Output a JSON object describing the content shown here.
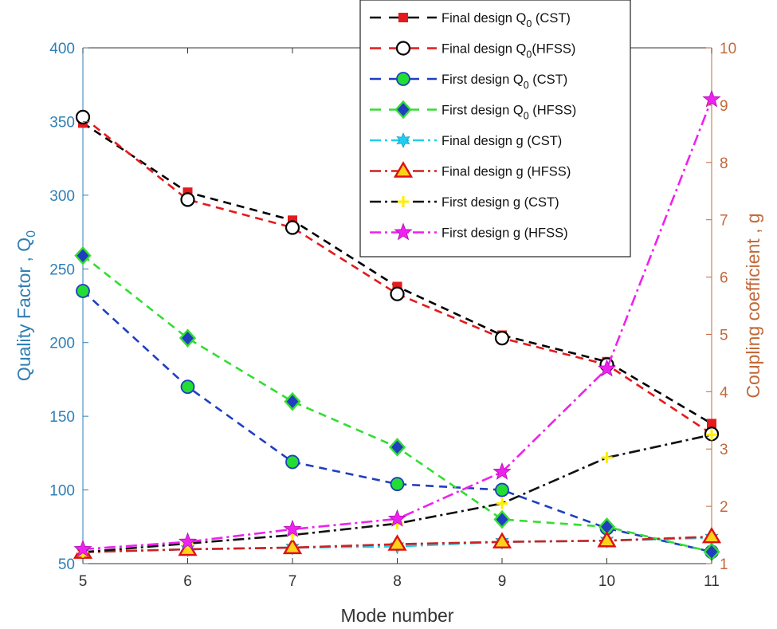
{
  "chart_data": {
    "type": "line",
    "xlabel": "Mode number",
    "ylabel_left": "Quality Factor , Q0",
    "ylabel_right": "Coupling coefficient , g",
    "x": [
      5,
      6,
      7,
      8,
      9,
      10,
      11
    ],
    "x_ticks": [
      "5",
      "6",
      "7",
      "8",
      "9",
      "10",
      "11"
    ],
    "ylim_left": [
      50,
      400
    ],
    "yticks_left": [
      "50",
      "100",
      "150",
      "200",
      "250",
      "300",
      "350",
      "400"
    ],
    "ylim_right": [
      1,
      10
    ],
    "yticks_right": [
      "1",
      "2",
      "3",
      "4",
      "5",
      "6",
      "7",
      "8",
      "9",
      "10"
    ],
    "legend_position": "top-right",
    "grid": false,
    "series": [
      {
        "name": "Final design Q0 (CST)",
        "axis": "left",
        "color": "#000000",
        "marker_color": "#e41a1c",
        "line": "dash",
        "marker": "square",
        "values": [
          349,
          302,
          283,
          238,
          205,
          187,
          145
        ]
      },
      {
        "name": "Final design Q0(HFSS)",
        "axis": "left",
        "color": "#e41a1c",
        "marker_color": "#000000",
        "line": "dash",
        "marker": "circle-open",
        "values": [
          353,
          297,
          278,
          233,
          203,
          185,
          138
        ]
      },
      {
        "name": "First design Q0 (CST)",
        "axis": "left",
        "color": "#1f3fbf",
        "marker_color": "#22dd33",
        "line": "dash",
        "marker": "circle-filled",
        "values": [
          235,
          170,
          119,
          104,
          100,
          74,
          58
        ]
      },
      {
        "name": "First design Q0 (HFSS)",
        "axis": "left",
        "color": "#33dd33",
        "marker_color": "#1f3fbf",
        "line": "dash",
        "marker": "diamond",
        "values": [
          259,
          203,
          160,
          129,
          80,
          75,
          58
        ]
      },
      {
        "name": "Final design g (CST)",
        "axis": "right",
        "color": "#22ccee",
        "marker_color": "#22ccee",
        "line": "dashdot",
        "marker": "star6",
        "values": [
          1.2,
          1.25,
          1.28,
          1.3,
          1.38,
          1.4,
          1.45
        ]
      },
      {
        "name": "Final design g (HFSS)",
        "axis": "right",
        "color": "#cc2222",
        "marker_color": "#dd1111",
        "line": "dashdot",
        "marker": "triangle",
        "values": [
          1.2,
          1.25,
          1.28,
          1.34,
          1.38,
          1.4,
          1.47
        ]
      },
      {
        "name": "First design g (CST)",
        "axis": "right",
        "color": "#111111",
        "marker_color": "#ffee00",
        "line": "dashdot",
        "marker": "plus",
        "values": [
          1.2,
          1.35,
          1.5,
          1.7,
          2.05,
          2.85,
          3.25
        ]
      },
      {
        "name": "First design g (HFSS)",
        "axis": "right",
        "color": "#ee22ee",
        "marker_color": "#ee22ee",
        "line": "dashdot",
        "marker": "star5",
        "values": [
          1.25,
          1.38,
          1.6,
          1.78,
          2.6,
          4.4,
          9.1
        ]
      }
    ],
    "legend": [
      {
        "main": "Final design Q",
        "sub": "0",
        "rest": " (CST)"
      },
      {
        "main": "Final design Q",
        "sub": "0",
        "rest": "(HFSS)"
      },
      {
        "main": "First design Q",
        "sub": "0",
        "rest": " (CST)"
      },
      {
        "main": "First design Q",
        "sub": "0",
        "rest": " (HFSS)"
      },
      {
        "main": "Final design g (CST)",
        "sub": "",
        "rest": ""
      },
      {
        "main": "Final design g (HFSS)",
        "sub": "",
        "rest": ""
      },
      {
        "main": "First design g (CST)",
        "sub": "",
        "rest": ""
      },
      {
        "main": "First design g (HFSS)",
        "sub": "",
        "rest": ""
      }
    ],
    "colors": {
      "left_axis": "#2f7fb5",
      "right_axis": "#c2693a",
      "x_axis": "#333333"
    }
  }
}
